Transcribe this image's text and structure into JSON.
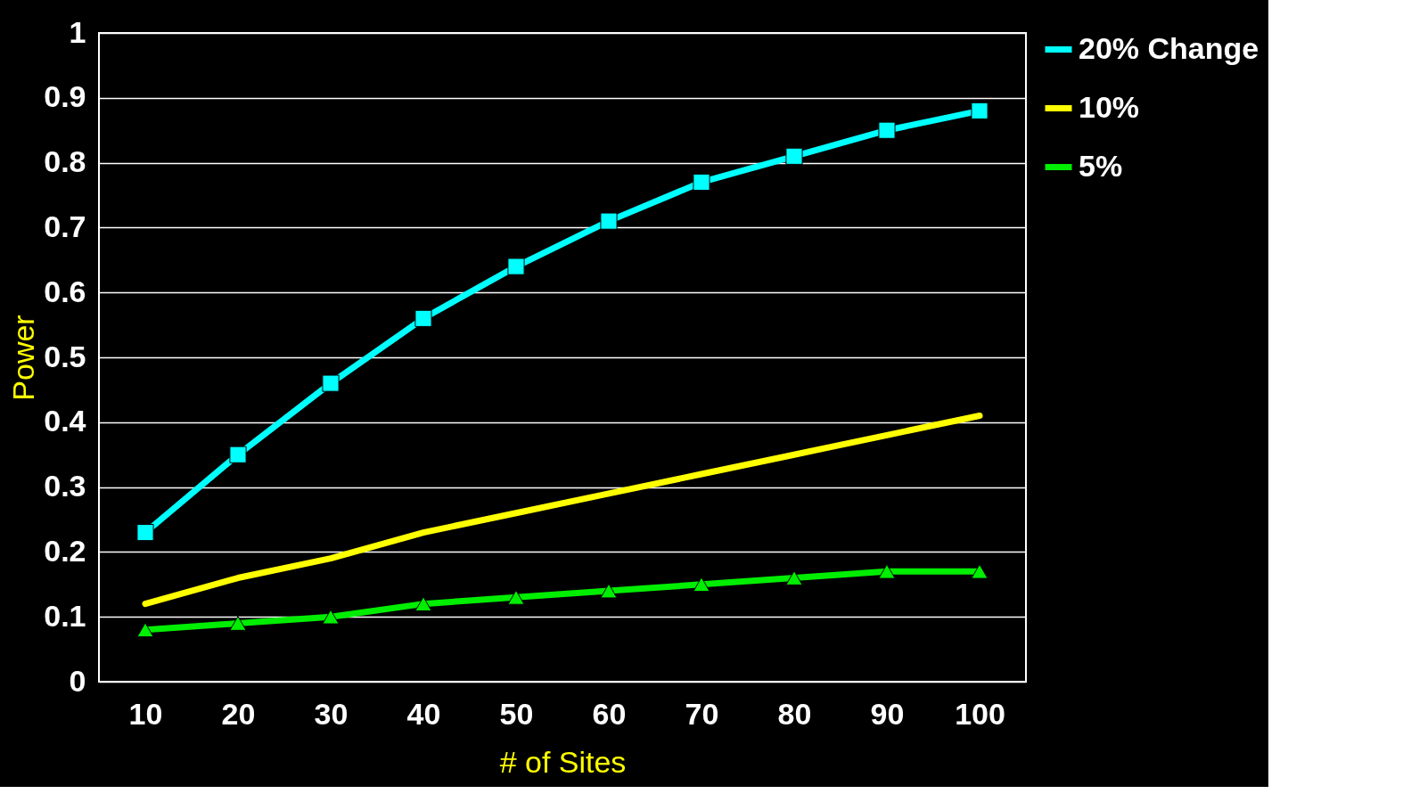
{
  "chart_data": {
    "type": "line",
    "xlabel": "# of Sites",
    "ylabel": "Power",
    "categories": [
      "10",
      "20",
      "30",
      "40",
      "50",
      "60",
      "70",
      "80",
      "90",
      "100"
    ],
    "series": [
      {
        "name": "20% Change",
        "color": "#00ffff",
        "marker": "square",
        "values": [
          0.23,
          0.35,
          0.46,
          0.56,
          0.64,
          0.71,
          0.77,
          0.81,
          0.85,
          0.88
        ]
      },
      {
        "name": "10%",
        "color": "#ffff00",
        "marker": "none",
        "values": [
          0.12,
          0.16,
          0.19,
          0.23,
          0.26,
          0.29,
          0.32,
          0.35,
          0.38,
          0.41
        ]
      },
      {
        "name": "5%",
        "color": "#00ee00",
        "marker": "triangle",
        "values": [
          0.08,
          0.09,
          0.1,
          0.12,
          0.13,
          0.14,
          0.15,
          0.16,
          0.17,
          0.17
        ]
      }
    ],
    "ylim": [
      0,
      1
    ],
    "yticks": [
      0,
      0.1,
      0.2,
      0.3,
      0.4,
      0.5,
      0.6,
      0.7,
      0.8,
      0.9,
      1
    ],
    "grid": "y",
    "legend": "right",
    "line_style": "solid"
  }
}
